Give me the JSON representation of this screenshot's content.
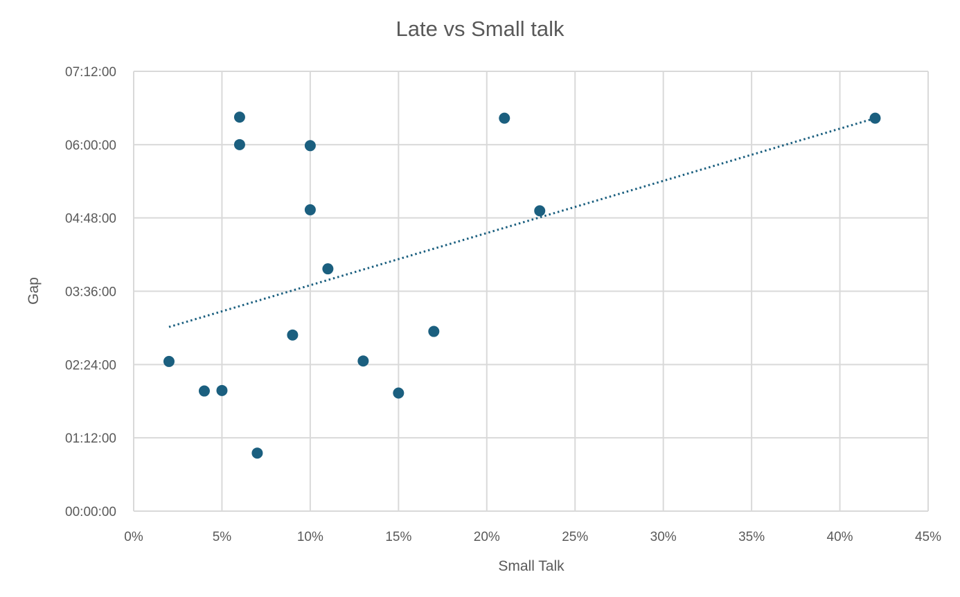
{
  "chart_data": {
    "type": "scatter",
    "title": "Late vs Small talk",
    "xlabel": "Small Talk",
    "ylabel": "Gap",
    "x_unit": "percent",
    "y_unit": "hh:mm:ss",
    "xlim": [
      0,
      45
    ],
    "ylim": [
      "00:00:00",
      "07:12:00"
    ],
    "x_ticks": [
      "0%",
      "5%",
      "10%",
      "15%",
      "20%",
      "25%",
      "30%",
      "35%",
      "40%",
      "45%"
    ],
    "y_ticks": [
      "00:00:00",
      "01:12:00",
      "02:24:00",
      "03:36:00",
      "04:48:00",
      "06:00:00",
      "07:12:00"
    ],
    "grid": true,
    "trendline": {
      "type": "linear",
      "style": "dotted",
      "x_range": [
        2,
        42
      ]
    },
    "color": "#1b5f7f",
    "points": [
      {
        "x": 2,
        "y": "02:27:00"
      },
      {
        "x": 4,
        "y": "01:58:00"
      },
      {
        "x": 5,
        "y": "01:58:30"
      },
      {
        "x": 6,
        "y": "06:27:00"
      },
      {
        "x": 6,
        "y": "06:00:00"
      },
      {
        "x": 7,
        "y": "00:57:00"
      },
      {
        "x": 9,
        "y": "02:53:00"
      },
      {
        "x": 10,
        "y": "05:59:00"
      },
      {
        "x": 10,
        "y": "04:56:00"
      },
      {
        "x": 11,
        "y": "03:58:00"
      },
      {
        "x": 13,
        "y": "02:27:30"
      },
      {
        "x": 15,
        "y": "01:56:00"
      },
      {
        "x": 17,
        "y": "02:56:30"
      },
      {
        "x": 21,
        "y": "06:26:00"
      },
      {
        "x": 23,
        "y": "04:55:00"
      },
      {
        "x": 42,
        "y": "06:26:00"
      }
    ]
  }
}
